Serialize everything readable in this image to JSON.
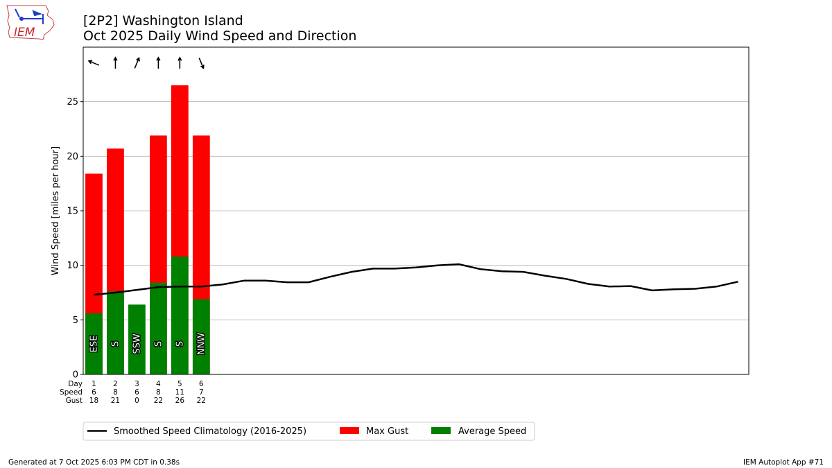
{
  "logo": {
    "text": "IEM"
  },
  "title": {
    "line1": "[2P2] Washington Island",
    "line2": "Oct 2025 Daily Wind Speed and Direction"
  },
  "footer": {
    "left": "Generated at 7 Oct 2025 6:03 PM CDT in 0.38s",
    "right": "IEM Autoplot App #71"
  },
  "chart_data": {
    "type": "bar",
    "ylabel": "Wind Speed [miles per hour]",
    "ylim": [
      0,
      30
    ],
    "yticks": [
      0,
      5,
      10,
      15,
      20,
      25
    ],
    "xlim": [
      0.5,
      31.5
    ],
    "grid": true,
    "legend_position": "bottom",
    "row_labels": [
      "Day",
      "Speed",
      "Gust"
    ],
    "days": [
      1,
      2,
      3,
      4,
      5,
      6
    ],
    "speed_labels": [
      6,
      8,
      6,
      8,
      11,
      7
    ],
    "gust_labels": [
      18,
      21,
      0,
      22,
      26,
      22
    ],
    "avg_speed": [
      5.6,
      7.6,
      6.4,
      8.4,
      10.8,
      6.9
    ],
    "max_gust": [
      18.4,
      20.7,
      0,
      21.9,
      26.5,
      21.9
    ],
    "direction_labels": [
      "ESE",
      "S",
      "SSW",
      "S",
      "S",
      "NNW"
    ],
    "direction_degrees": [
      112.5,
      180,
      202.5,
      180,
      180,
      337.5
    ],
    "climatology": {
      "name": "Smoothed Speed Climatology (2016-2025)",
      "x": [
        1,
        2,
        3,
        4,
        5,
        6,
        7,
        8,
        9,
        10,
        11,
        12,
        13,
        14,
        15,
        16,
        17,
        18,
        19,
        20,
        21,
        22,
        23,
        24,
        25,
        26,
        27,
        28,
        29,
        30,
        31
      ],
      "y": [
        7.3,
        7.5,
        7.75,
        8.0,
        8.05,
        8.05,
        8.25,
        8.6,
        8.6,
        8.45,
        8.45,
        8.95,
        9.4,
        9.7,
        9.7,
        9.8,
        10.0,
        10.1,
        9.65,
        9.45,
        9.4,
        9.05,
        8.75,
        8.3,
        8.05,
        8.1,
        7.7,
        7.8,
        7.85,
        8.05,
        8.5
      ]
    },
    "legend": [
      {
        "label": "Smoothed Speed Climatology (2016-2025)",
        "color": "#000000",
        "kind": "line"
      },
      {
        "label": "Max Gust",
        "color": "#ff0000",
        "kind": "patch"
      },
      {
        "label": "Average Speed",
        "color": "#008000",
        "kind": "patch"
      }
    ],
    "colors": {
      "gust": "#ff0000",
      "speed": "#008000",
      "climatology": "#000000",
      "grid": "#b0b0b0"
    }
  }
}
